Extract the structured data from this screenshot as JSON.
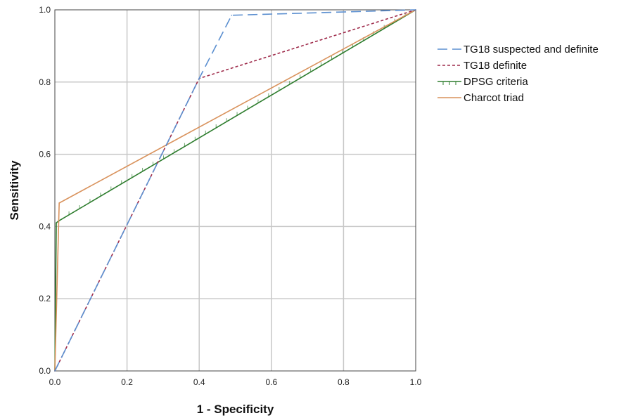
{
  "chart_data": {
    "type": "line",
    "title": "",
    "xlabel": "1 - Specificity",
    "ylabel": "Sensitivity",
    "xlim": [
      0.0,
      1.0
    ],
    "ylim": [
      0.0,
      1.0
    ],
    "x_ticks": [
      "0.0",
      "0.2",
      "0.4",
      "0.6",
      "0.8",
      "1.0"
    ],
    "y_ticks": [
      "0.0",
      "0.2",
      "0.4",
      "0.6",
      "0.8",
      "1.0"
    ],
    "grid": true,
    "legend_position": "right",
    "series": [
      {
        "name": "TG18 suspected and definite",
        "color": "#5b8fd0",
        "dash": "long-dash",
        "points": [
          [
            0.0,
            0.0
          ],
          [
            0.4,
            0.81
          ],
          [
            0.49,
            0.985
          ],
          [
            1.0,
            1.0
          ]
        ]
      },
      {
        "name": "TG18 definite",
        "color": "#9e2a4a",
        "dash": "short-dash",
        "points": [
          [
            0.0,
            0.0
          ],
          [
            0.4,
            0.81
          ],
          [
            1.0,
            1.0
          ]
        ]
      },
      {
        "name": "DPSG criteria",
        "color": "#2e7d2e",
        "dash": "solid-ticked",
        "points": [
          [
            0.0,
            0.0
          ],
          [
            0.004,
            0.41
          ],
          [
            0.01,
            0.415
          ],
          [
            1.0,
            1.0
          ]
        ]
      },
      {
        "name": "Charcot triad",
        "color": "#d9925c",
        "dash": "solid",
        "points": [
          [
            0.0,
            0.0
          ],
          [
            0.012,
            0.465
          ],
          [
            1.0,
            1.0
          ]
        ]
      }
    ]
  }
}
